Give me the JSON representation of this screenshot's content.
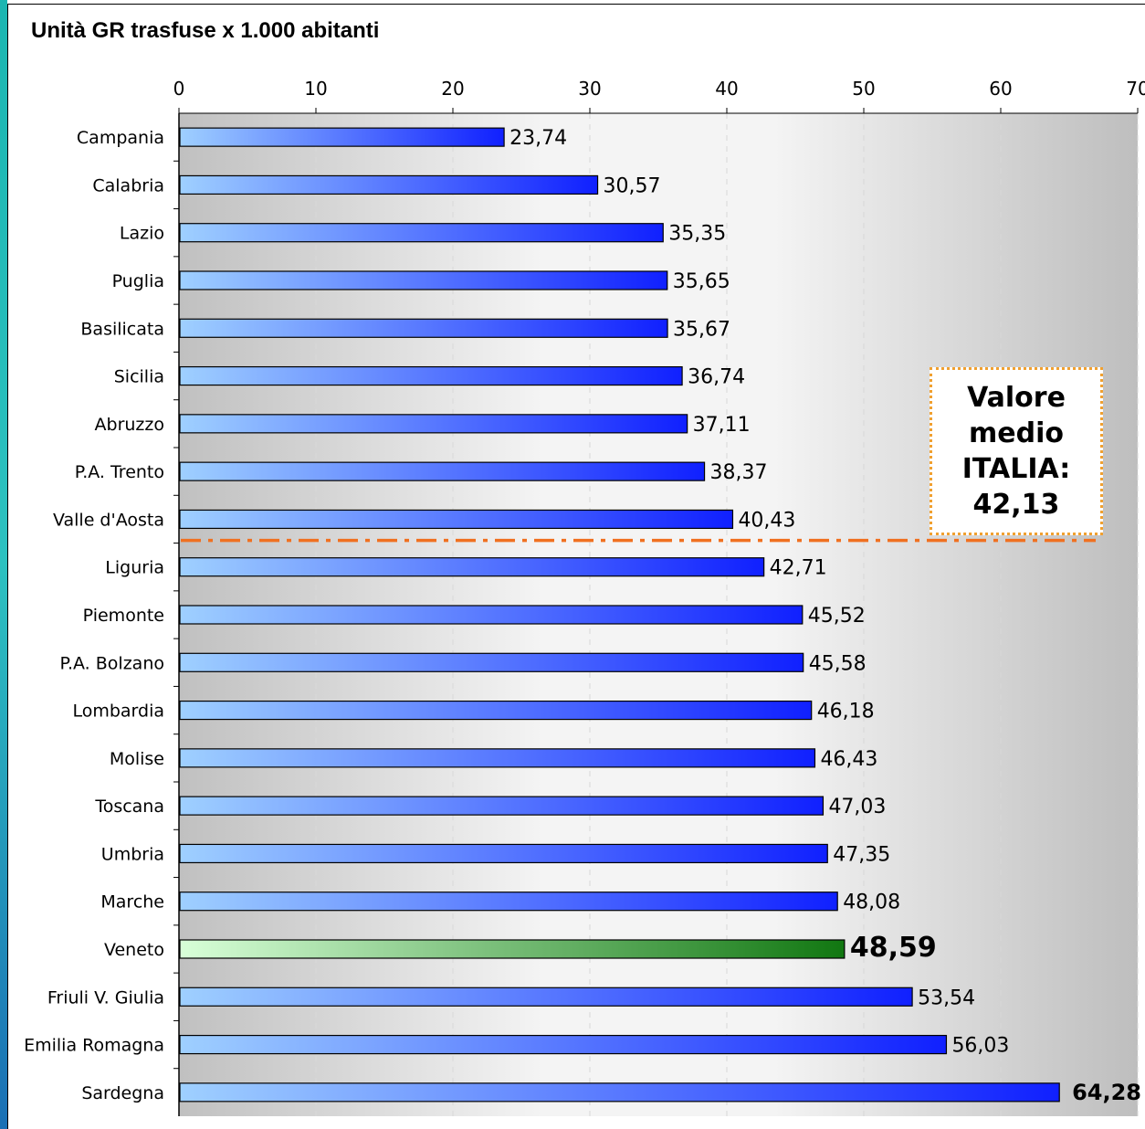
{
  "chart_data": {
    "type": "bar",
    "orientation": "horizontal",
    "title": "Unità GR trasfuse x 1.000 abitanti",
    "xlim": [
      0,
      70
    ],
    "x_ticks": [
      "0",
      "10",
      "20",
      "30",
      "40",
      "50",
      "60",
      "70"
    ],
    "grid": true,
    "categories": [
      "Campania",
      "Calabria",
      "Lazio",
      "Puglia",
      "Basilicata",
      "Sicilia",
      "Abruzzo",
      "P.A. Trento",
      "Valle d'Aosta",
      "Liguria",
      "Piemonte",
      "P.A. Bolzano",
      "Lombardia",
      "Molise",
      "Toscana",
      "Umbria",
      "Marche",
      "Veneto",
      "Friuli V. Giulia",
      "Emilia Romagna",
      "Sardegna"
    ],
    "values": [
      23.74,
      30.57,
      35.35,
      35.65,
      35.67,
      36.74,
      37.11,
      38.37,
      40.43,
      42.71,
      45.52,
      45.58,
      46.18,
      46.43,
      47.03,
      47.35,
      48.08,
      48.59,
      53.54,
      56.03,
      64.28
    ],
    "value_labels": [
      "23,74",
      "30,57",
      "35,35",
      "35,65",
      "35,67",
      "36,74",
      "37,11",
      "38,37",
      "40,43",
      "42,71",
      "45,52",
      "45,58",
      "46,18",
      "46,43",
      "47,03",
      "47,35",
      "48,08",
      "48,59",
      "53,54",
      "56,03",
      "64,28"
    ],
    "highlight_category": "Veneto",
    "colors": {
      "bar_light": "#9fd0ff",
      "bar_dark": "#1020ff",
      "highlight_light": "#d8ffd8",
      "highlight_dark": "#117711",
      "average_line": "#f07020",
      "plot_bg_edge": "#c0c0c0",
      "plot_bg_center": "#f2f2f2"
    },
    "average": {
      "value": 42.13,
      "label_lines": [
        "Valore",
        "medio",
        "ITALIA:",
        "42,13"
      ]
    }
  }
}
